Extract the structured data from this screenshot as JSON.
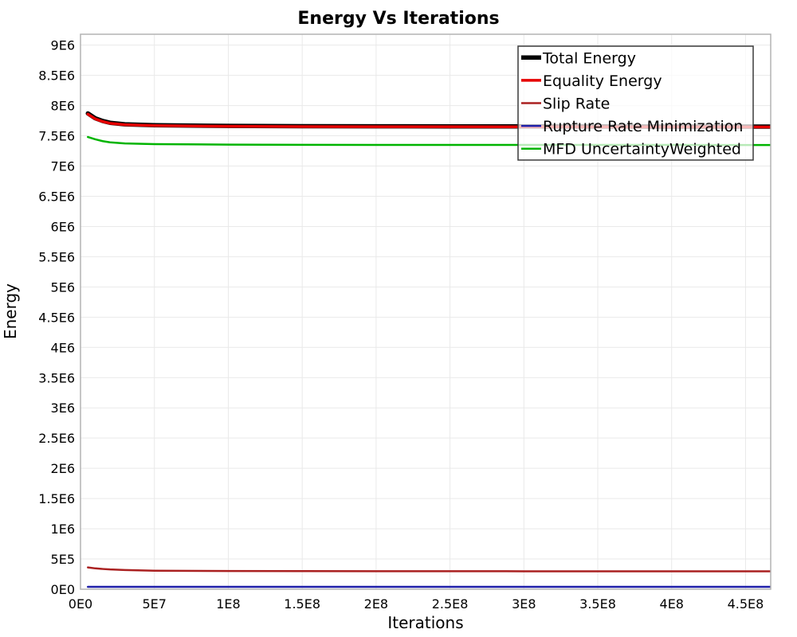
{
  "page": {
    "background": "#ffffff"
  },
  "colors": {
    "grid": "#e9e9e9",
    "axis_border": "#b3b3b3",
    "text": "#000000",
    "legend_border": "#3a3a3a",
    "legend_background_alpha": 0.72
  },
  "chart_data": {
    "type": "line",
    "title": "Energy Vs Iterations",
    "xlabel": "Iterations",
    "ylabel": "Energy",
    "xlim": [
      0,
      467000000
    ],
    "ylim": [
      0,
      9180000
    ],
    "grid": true,
    "legend_position": "top-right",
    "x_ticks": [
      {
        "value": 0,
        "label": "0E0"
      },
      {
        "value": 50000000,
        "label": "5E7"
      },
      {
        "value": 100000000,
        "label": "1E8"
      },
      {
        "value": 150000000,
        "label": "1.5E8"
      },
      {
        "value": 200000000,
        "label": "2E8"
      },
      {
        "value": 250000000,
        "label": "2.5E8"
      },
      {
        "value": 300000000,
        "label": "3E8"
      },
      {
        "value": 350000000,
        "label": "3.5E8"
      },
      {
        "value": 400000000,
        "label": "4E8"
      },
      {
        "value": 450000000,
        "label": "4.5E8"
      }
    ],
    "y_ticks": [
      {
        "value": 0,
        "label": "0E0"
      },
      {
        "value": 500000,
        "label": "5E5"
      },
      {
        "value": 1000000,
        "label": "1E6"
      },
      {
        "value": 1500000,
        "label": "1.5E6"
      },
      {
        "value": 2000000,
        "label": "2E6"
      },
      {
        "value": 2500000,
        "label": "2.5E6"
      },
      {
        "value": 3000000,
        "label": "3E6"
      },
      {
        "value": 3500000,
        "label": "3.5E6"
      },
      {
        "value": 4000000,
        "label": "4E6"
      },
      {
        "value": 4500000,
        "label": "4.5E6"
      },
      {
        "value": 5000000,
        "label": "5E6"
      },
      {
        "value": 5500000,
        "label": "5.5E6"
      },
      {
        "value": 6000000,
        "label": "6E6"
      },
      {
        "value": 6500000,
        "label": "6.5E6"
      },
      {
        "value": 7000000,
        "label": "7E6"
      },
      {
        "value": 7500000,
        "label": "7.5E6"
      },
      {
        "value": 8000000,
        "label": "8E6"
      },
      {
        "value": 8500000,
        "label": "8.5E6"
      },
      {
        "value": 9000000,
        "label": "9E6"
      }
    ],
    "x": [
      5000000,
      10000000,
      15000000,
      20000000,
      30000000,
      50000000,
      100000000,
      150000000,
      200000000,
      250000000,
      300000000,
      350000000,
      400000000,
      435000000,
      467000000
    ],
    "series": [
      {
        "name": "Total Energy",
        "color": "#000000",
        "line_width": 5.5,
        "values": [
          7870000,
          7790000,
          7745000,
          7715000,
          7690000,
          7675000,
          7663000,
          7659000,
          7657000,
          7656000,
          7655000,
          7654000,
          7653000,
          7653000,
          7652000
        ]
      },
      {
        "name": "Equality Energy",
        "color": "#e60000",
        "line_width": 3.5,
        "values": [
          7858000,
          7780000,
          7736000,
          7707000,
          7683000,
          7668000,
          7657000,
          7653000,
          7651000,
          7650000,
          7649000,
          7648000,
          7647000,
          7647000,
          7646000
        ]
      },
      {
        "name": "Slip Rate",
        "color": "#aa2020",
        "line_width": 2.5,
        "values": [
          360000,
          345000,
          335000,
          327000,
          317000,
          307000,
          301000,
          299000,
          298000,
          298000,
          297000,
          297000,
          297000,
          296000,
          296000
        ]
      },
      {
        "name": "Rupture Rate Minimization",
        "color": "#2020aa",
        "line_width": 2.5,
        "values": [
          40000,
          40000,
          40000,
          40000,
          40000,
          40000,
          40000,
          40000,
          40000,
          40000,
          40000,
          40000,
          40000,
          40000,
          40000
        ]
      },
      {
        "name": "MFD UncertaintyWeighted",
        "color": "#00b400",
        "line_width": 2.5,
        "values": [
          7480000,
          7442000,
          7412000,
          7392000,
          7374000,
          7362000,
          7354000,
          7351000,
          7350000,
          7350000,
          7349000,
          7349000,
          7349000,
          7348000,
          7348000
        ]
      }
    ]
  }
}
